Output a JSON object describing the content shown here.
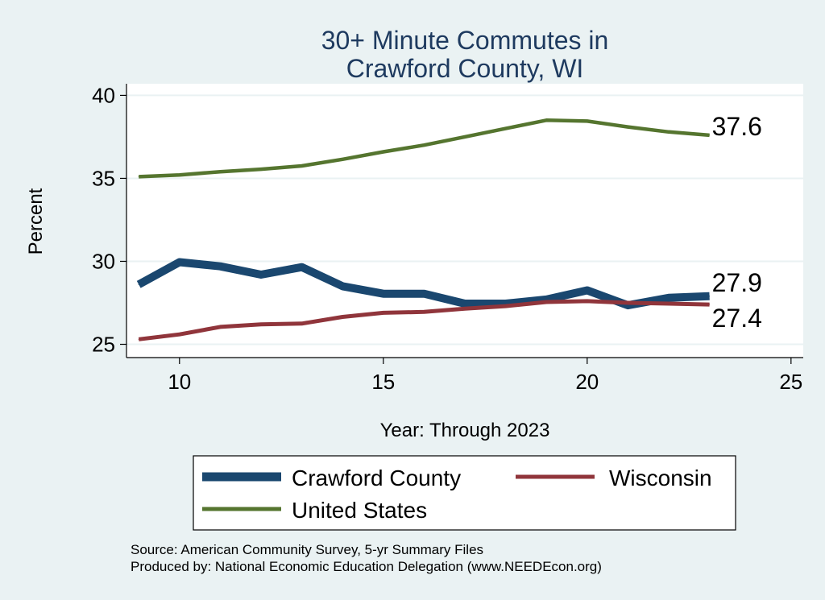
{
  "chart_data": {
    "type": "line",
    "title": [
      "30+ Minute Commutes in",
      "Crawford County, WI"
    ],
    "xlabel": "Year: Through 2023",
    "ylabel": "Percent",
    "xlim": [
      8.7,
      25.3
    ],
    "ylim": [
      24.2,
      40.7
    ],
    "xticks": [
      10,
      15,
      20,
      25
    ],
    "yticks": [
      25,
      30,
      35,
      40
    ],
    "grid": true,
    "legend_position": "bottom",
    "series": [
      {
        "name": "Crawford County",
        "color": "#1a476f",
        "x": [
          9,
          10,
          11,
          12,
          13,
          14,
          15,
          16,
          17,
          18,
          19,
          20,
          21,
          22,
          23
        ],
        "values": [
          28.6,
          29.95,
          29.7,
          29.2,
          29.65,
          28.5,
          28.05,
          28.05,
          27.45,
          27.45,
          27.7,
          28.25,
          27.35,
          27.8,
          27.9
        ],
        "end_label": "27.9"
      },
      {
        "name": "Wisconsin",
        "color": "#90353b",
        "x": [
          9,
          10,
          11,
          12,
          13,
          14,
          15,
          16,
          17,
          18,
          19,
          20,
          21,
          22,
          23
        ],
        "values": [
          25.3,
          25.6,
          26.05,
          26.2,
          26.25,
          26.65,
          26.9,
          26.95,
          27.15,
          27.3,
          27.55,
          27.6,
          27.5,
          27.45,
          27.4
        ],
        "end_label": "27.4"
      },
      {
        "name": "United States",
        "color": "#55752f",
        "x": [
          9,
          10,
          11,
          12,
          13,
          14,
          15,
          16,
          17,
          18,
          19,
          20,
          21,
          22,
          23
        ],
        "values": [
          35.1,
          35.2,
          35.4,
          35.55,
          35.75,
          36.15,
          36.6,
          37.0,
          37.5,
          38.0,
          38.5,
          38.45,
          38.1,
          37.8,
          37.6
        ],
        "end_label": "37.6"
      }
    ],
    "notes": [
      "Source: American Community Survey, 5-yr Summary Files",
      "Produced by: National Economic Education Delegation (www.NEEDEcon.org)"
    ]
  },
  "legend": {
    "items": [
      "Crawford County",
      "Wisconsin",
      "United States"
    ]
  }
}
